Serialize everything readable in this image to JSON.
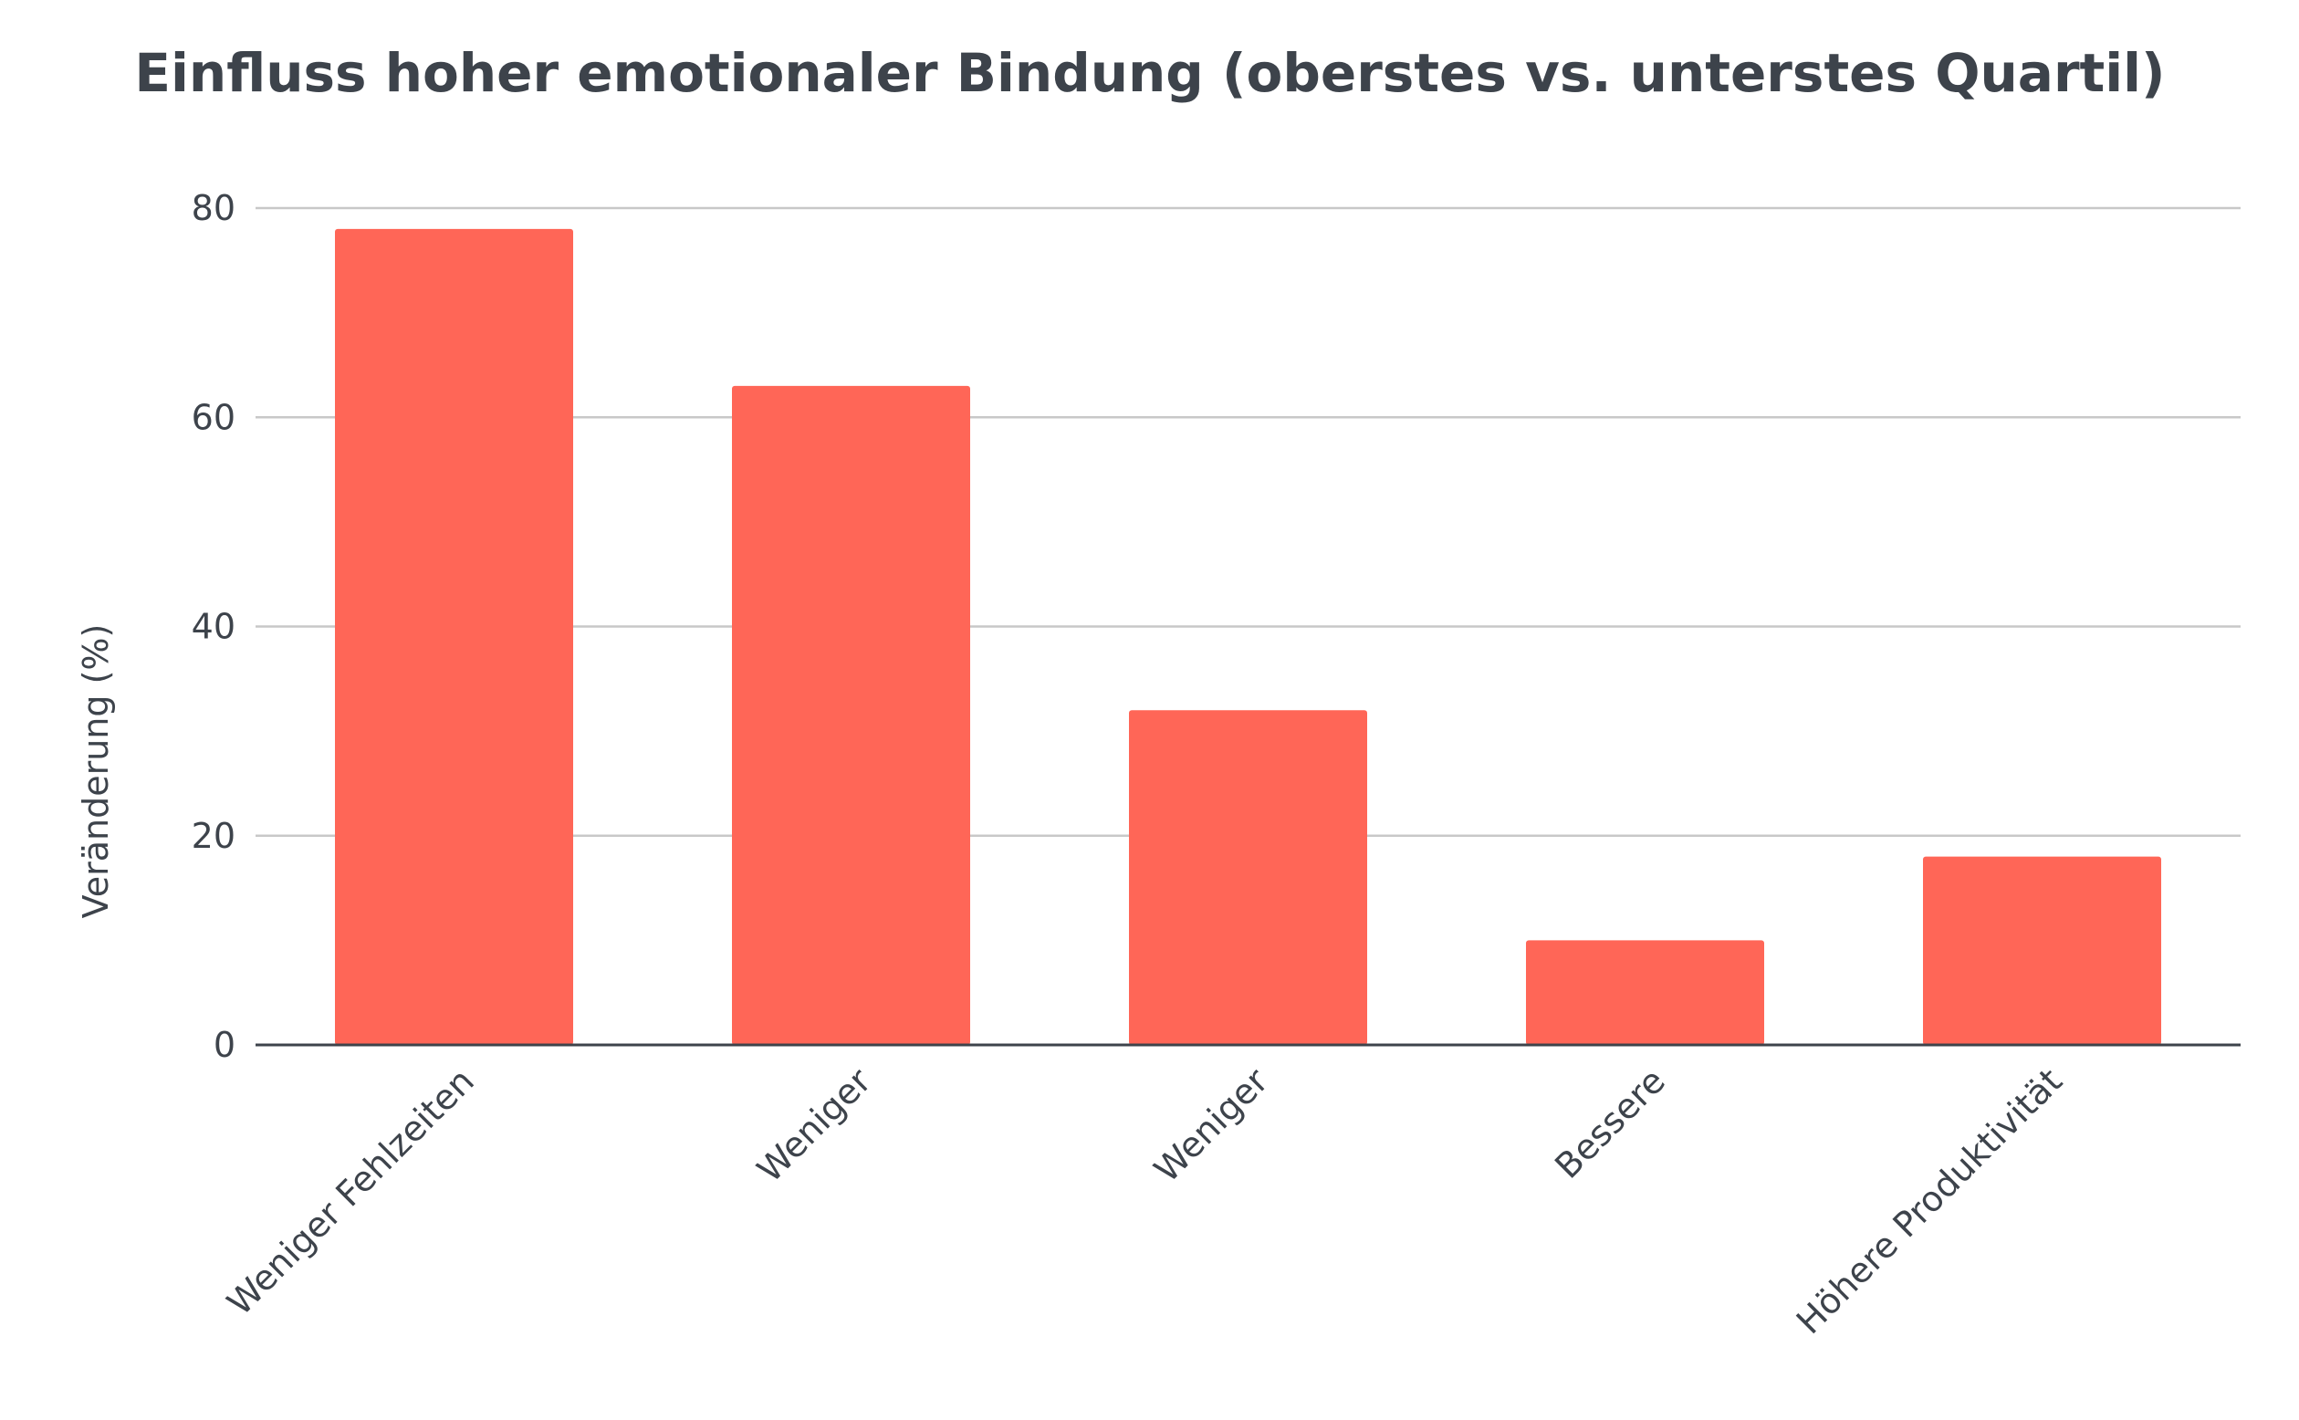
{
  "chart_data": {
    "type": "bar",
    "title": "Einfluss hoher emotionaler Bindung (oberstes vs. unterstes Quartil)",
    "xlabel": "",
    "ylabel": "Veränderung (%)",
    "categories": [
      "Weniger Fehlzeiten",
      "Weniger",
      "Weniger",
      "Bessere",
      "Höhere Produktivität"
    ],
    "values": [
      78,
      63,
      32,
      10,
      18
    ],
    "ylim": [
      0,
      80
    ],
    "yticks": [
      0,
      20,
      40,
      60,
      80
    ],
    "grid": true,
    "legend": "none",
    "colors": {
      "bar": "#ff6657",
      "grid": "#c8c8c8",
      "axis": "#3d434b",
      "text": "#3d434b"
    }
  }
}
